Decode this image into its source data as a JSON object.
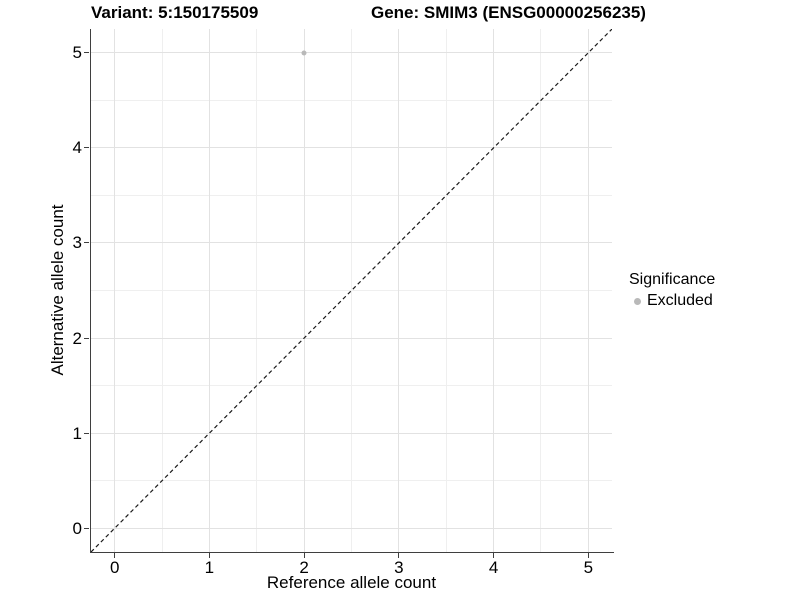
{
  "chart_data": {
    "type": "scatter",
    "title_left": "Variant: 5:150175509",
    "title_right": "Gene: SMIM3 (ENSG00000256235)",
    "xlabel": "Reference allele count",
    "ylabel": "Alternative allele count",
    "legend_title": "Significance",
    "x_ticks": [
      0,
      1,
      2,
      3,
      4,
      5
    ],
    "y_ticks": [
      0,
      1,
      2,
      3,
      4,
      5
    ],
    "x_minor_ticks": [
      0.5,
      1.5,
      2.5,
      3.5,
      4.5
    ],
    "y_minor_ticks": [
      0.5,
      1.5,
      2.5,
      3.5,
      4.5
    ],
    "xlim": [
      -0.25,
      5.25
    ],
    "ylim": [
      -0.25,
      5.25
    ],
    "grid": "major and minor, light gray on white",
    "legend_position": "right",
    "series": [
      {
        "name": "Excluded",
        "color": "#b9b9b9",
        "points": [
          {
            "x": 2,
            "y": 5
          }
        ]
      }
    ],
    "reference_line": {
      "type": "identity y=x",
      "style": "dashed",
      "color": "#1a1a1a"
    },
    "colors": {
      "grid_major": "#e2e2e2",
      "grid_minor": "#efefef",
      "axis_line": "#3f3f3f",
      "background": "#ffffff"
    }
  }
}
